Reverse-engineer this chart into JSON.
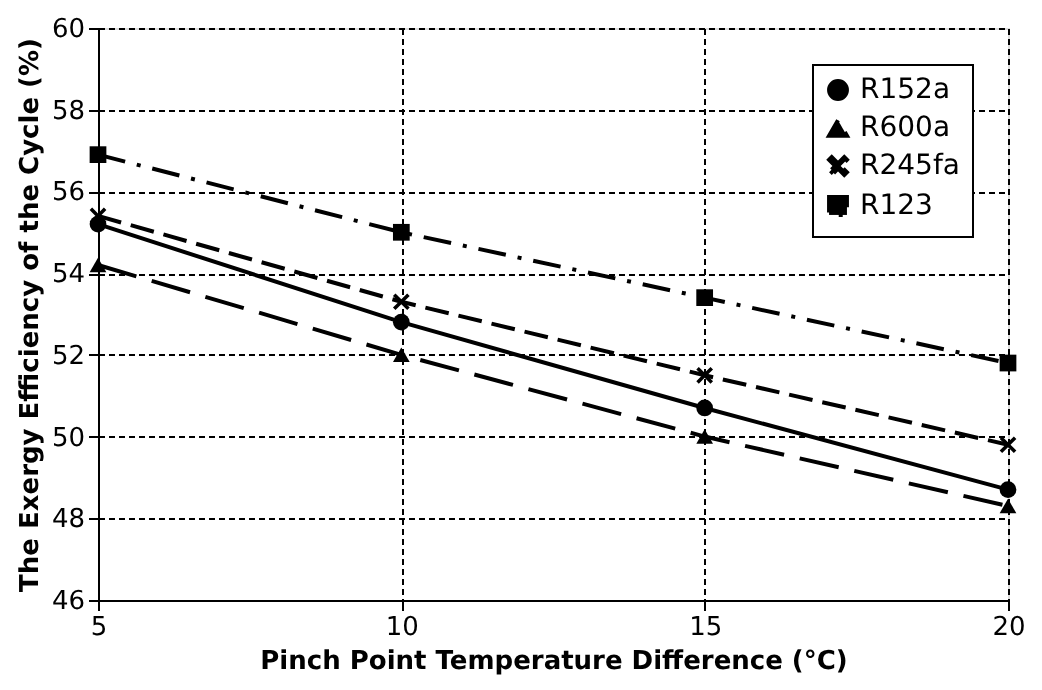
{
  "chart_data": {
    "type": "line",
    "xlabel": "Pinch Point Temperature Difference (°C)",
    "ylabel": "The Exergy Efficiency of the Cycle (%)",
    "x": [
      5,
      10,
      15,
      20
    ],
    "xlim": [
      5,
      20
    ],
    "xticks": [
      5,
      10,
      15,
      20
    ],
    "ylim": [
      46,
      60
    ],
    "yticks": [
      46,
      48,
      50,
      52,
      54,
      56,
      58,
      60
    ],
    "series": [
      {
        "name": "R152a",
        "color": "#000000",
        "marker": "circle",
        "line_style": "solid",
        "values": [
          55.2,
          52.8,
          50.7,
          48.7
        ]
      },
      {
        "name": "R600a",
        "color": "#000000",
        "marker": "triangle",
        "line_style": "dashed",
        "values": [
          54.2,
          52.0,
          50.0,
          48.3
        ]
      },
      {
        "name": "R245fa",
        "color": "#000000",
        "marker": "cross",
        "line_style": "dashed",
        "values": [
          55.4,
          53.3,
          51.5,
          49.8
        ]
      },
      {
        "name": "R123",
        "color": "#000000",
        "marker": "square",
        "line_style": "dashdot",
        "values": [
          56.9,
          55.0,
          53.4,
          51.8
        ]
      }
    ],
    "grid": true,
    "legend": "top right"
  }
}
